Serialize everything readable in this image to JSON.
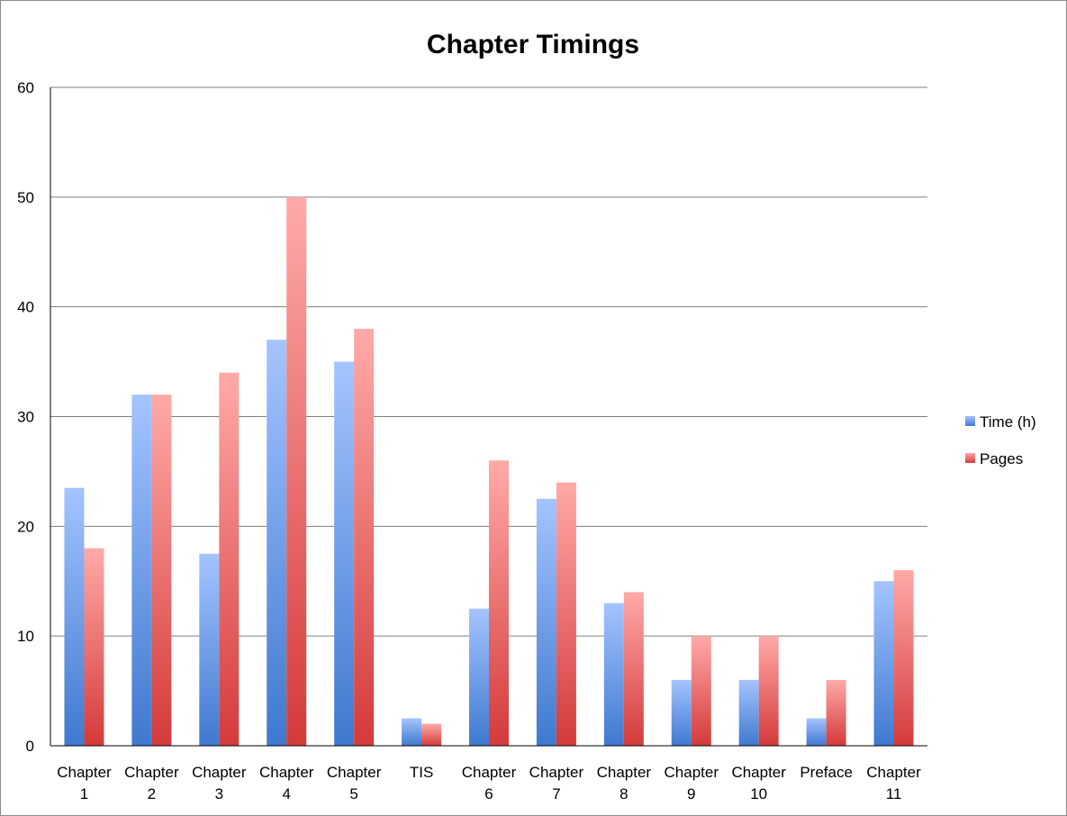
{
  "chart_data": {
    "type": "bar",
    "title": "Chapter Timings",
    "xlabel": "",
    "ylabel": "",
    "ylim": [
      0,
      60
    ],
    "yticks": [
      0,
      10,
      20,
      30,
      40,
      50,
      60
    ],
    "grid": true,
    "legend_position": "right",
    "categories": [
      [
        "Chapter",
        "1"
      ],
      [
        "Chapter",
        "2"
      ],
      [
        "Chapter",
        "3"
      ],
      [
        "Chapter",
        "4"
      ],
      [
        "Chapter",
        "5"
      ],
      [
        "TIS"
      ],
      [
        "Chapter",
        "6"
      ],
      [
        "Chapter",
        "7"
      ],
      [
        "Chapter",
        "8"
      ],
      [
        "Chapter",
        "9"
      ],
      [
        "Chapter",
        "10"
      ],
      [
        "Preface"
      ],
      [
        "Chapter",
        "11"
      ]
    ],
    "series": [
      {
        "name": "Time (h)",
        "color": "#4a7fd1",
        "values": [
          23.5,
          32,
          17.5,
          37,
          35,
          2.5,
          12.5,
          22.5,
          13,
          6,
          6,
          2.5,
          15
        ]
      },
      {
        "name": "Pages",
        "color": "#d94545",
        "values": [
          18,
          32,
          34,
          50,
          38,
          2,
          26,
          24,
          14,
          10,
          10,
          6,
          16
        ]
      }
    ]
  }
}
